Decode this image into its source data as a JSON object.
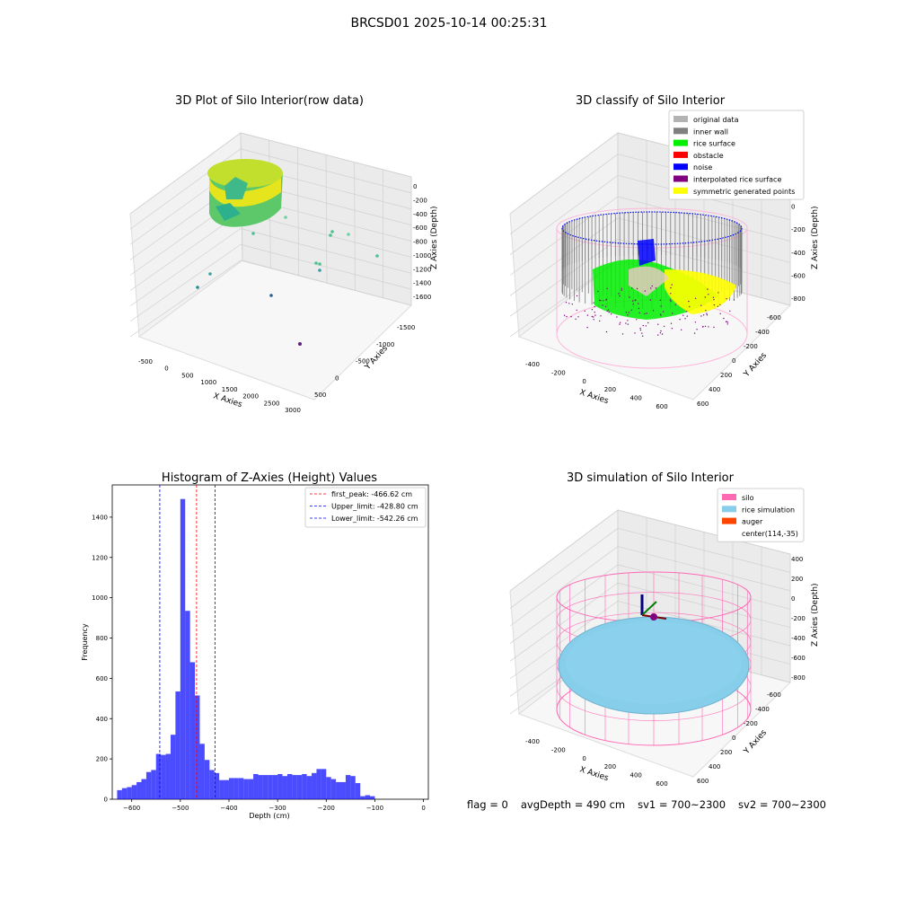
{
  "figure_title": "BRCSD01 2025-10-14 00:25:31",
  "panels": {
    "raw": {
      "title": "3D Plot of Silo Interior(row data)",
      "xlabel": "X Axies",
      "ylabel": "Y Axies",
      "zlabel": "Z Axies (Depth)",
      "xticks": [
        "-500",
        "0",
        "500",
        "1000",
        "1500",
        "2000",
        "2500",
        "3000"
      ],
      "yticks": [
        "500",
        "0",
        "-500",
        "-1000",
        "-1500"
      ],
      "zticks": [
        "0",
        "-200",
        "-400",
        "-600",
        "-800",
        "-1000",
        "-1200",
        "-1400",
        "-1600"
      ]
    },
    "classify": {
      "title": "3D classify of Silo Interior",
      "xlabel": "X Axies",
      "ylabel": "Y Axies",
      "zlabel": "Z Axies (Depth)",
      "xticks": [
        "-400",
        "-200",
        "0",
        "200",
        "400",
        "600"
      ],
      "yticks": [
        "600",
        "400",
        "200",
        "0",
        "-200",
        "-400",
        "-600"
      ],
      "zticks": [
        "200",
        "0",
        "-200",
        "-400",
        "-600",
        "-800"
      ],
      "legend": [
        {
          "label": "original data",
          "color": "#b3b3b3"
        },
        {
          "label": "inner wall",
          "color": "#808080"
        },
        {
          "label": "rice surface",
          "color": "#00ee00"
        },
        {
          "label": "obstacle",
          "color": "#ff0000"
        },
        {
          "label": "noise",
          "color": "#0000ff"
        },
        {
          "label": "interpolated rice surface",
          "color": "#800080"
        },
        {
          "label": "symmetric generated points",
          "color": "#ffff00"
        }
      ]
    },
    "simulation": {
      "title": "3D simulation of Silo Interior",
      "xlabel": "X Axies",
      "ylabel": "Y Axies",
      "zlabel": "Z Axies (Depth)",
      "xticks": [
        "-400",
        "-200",
        "0",
        "200",
        "400",
        "600"
      ],
      "yticks": [
        "600",
        "400",
        "200",
        "0",
        "-200",
        "-400",
        "-600"
      ],
      "zticks": [
        "400",
        "200",
        "0",
        "-200",
        "-400",
        "-600",
        "-800"
      ],
      "legend": [
        {
          "label": "silo",
          "color": "#ff69b4"
        },
        {
          "label": "rice simulation",
          "color": "#87ceeb"
        },
        {
          "label": "auger",
          "color": "#ff4500"
        },
        {
          "label": "center(114,-35)",
          "color": ""
        }
      ]
    }
  },
  "chart_data": {
    "type": "bar",
    "title": "Histogram of Z-Axies (Height) Values",
    "xlabel": "Depth (cm)",
    "ylabel": "Frequency",
    "xlim": [
      -640,
      10
    ],
    "ylim": [
      0,
      1560
    ],
    "bin_start": -630,
    "bin_width": 10,
    "values": [
      45,
      55,
      60,
      70,
      85,
      100,
      135,
      145,
      225,
      220,
      225,
      320,
      535,
      1490,
      935,
      680,
      515,
      275,
      195,
      145,
      130,
      95,
      95,
      105,
      105,
      105,
      100,
      100,
      125,
      120,
      120,
      120,
      120,
      125,
      115,
      125,
      120,
      120,
      125,
      115,
      130,
      150,
      150,
      110,
      100,
      85,
      85,
      120,
      115,
      80,
      15,
      20,
      15
    ],
    "bar_color": "#0000ff",
    "xticks": [
      "-600",
      "-500",
      "-400",
      "-300",
      "-200",
      "-100",
      "0"
    ],
    "yticks": [
      "0",
      "200",
      "400",
      "600",
      "800",
      "1000",
      "1200",
      "1400"
    ],
    "lines": [
      {
        "label": "first_peak: -466.62 cm",
        "value": -466.62,
        "color": "#ff0000"
      },
      {
        "label": "Upper_limit: -428.80 cm",
        "value": -428.8,
        "color": "#0000ff"
      },
      {
        "label": "Lower_limit: -542.26 cm",
        "value": -542.26,
        "color": "#0000ff"
      }
    ],
    "legend_position": "top-right"
  },
  "status": {
    "flag": "flag = 0",
    "avg_depth": "avgDepth = 490 cm",
    "sv1": "sv1 = 700~2300",
    "sv2": "sv2 = 700~2300"
  }
}
